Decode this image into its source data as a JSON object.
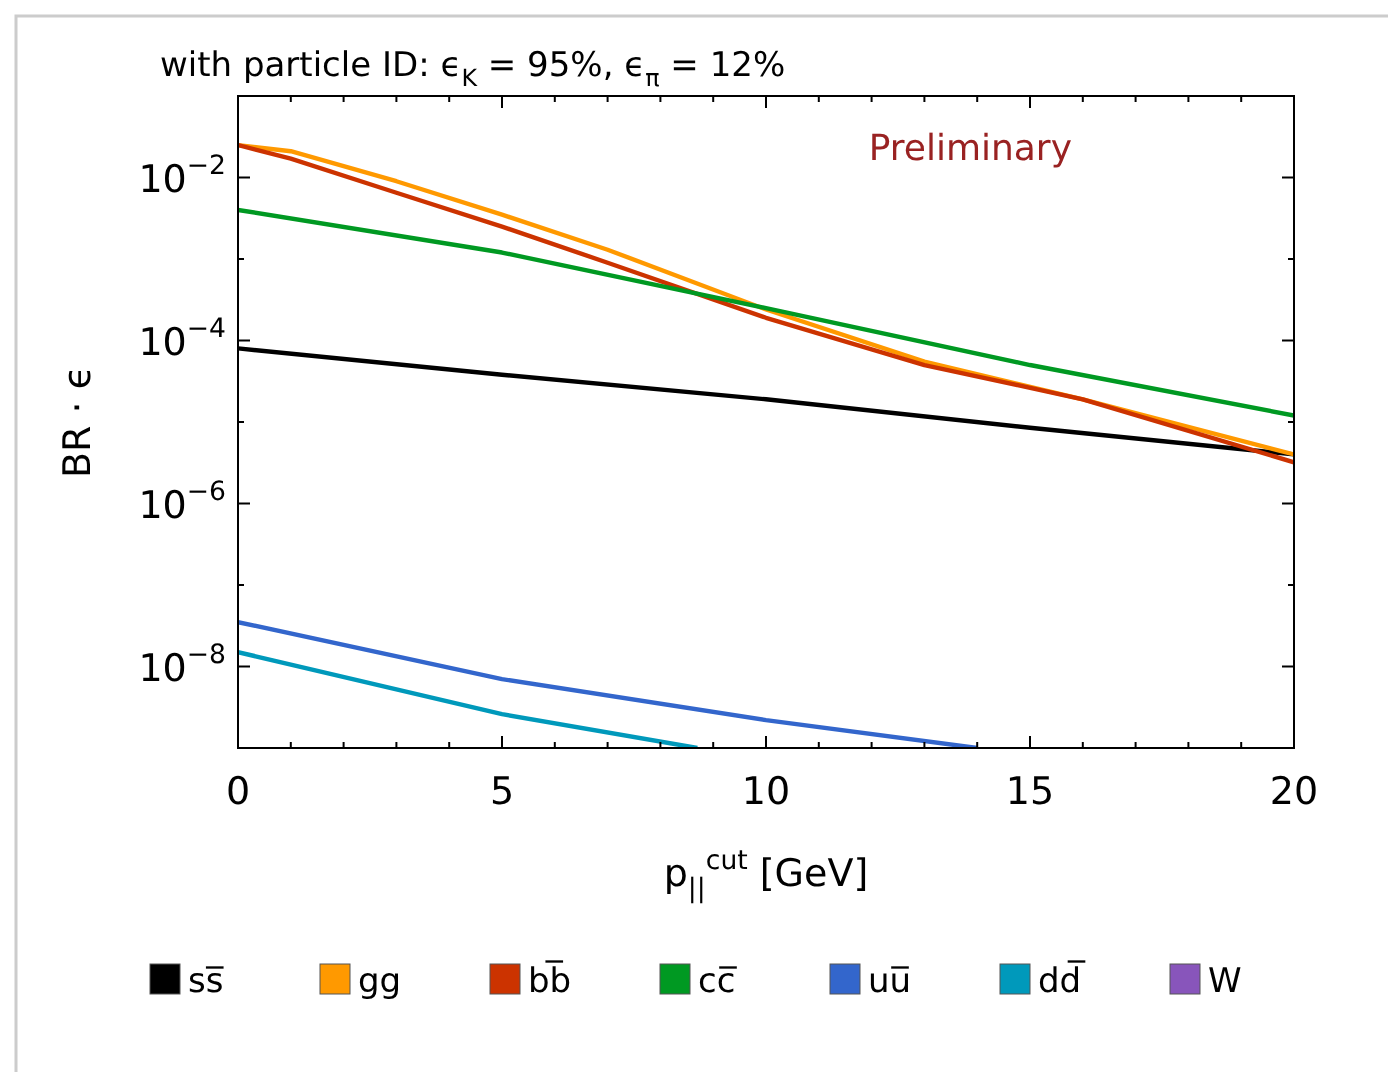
{
  "chart_data": {
    "type": "line",
    "title": "with particle ID: ϵ$_{K}$ = 95%, ϵ$_{π}$ = 12%",
    "xlabel": "p$_{||}$$^{cut}$ [GeV]",
    "ylabel": "BR · ϵ",
    "log": "y",
    "legend": "bottom",
    "grid": false,
    "annotations": [
      "Preliminary"
    ],
    "xlim": [
      0,
      20
    ],
    "xticks": [
      0,
      {
        "value": 1,
        "label": null
      },
      {
        "value": 2,
        "label": null
      },
      {
        "value": 3,
        "label": null
      },
      {
        "value": 4,
        "label": null
      },
      5,
      {
        "value": 6,
        "label": null
      },
      {
        "value": 7,
        "label": null
      },
      {
        "value": 8,
        "label": null
      },
      {
        "value": 9,
        "label": null
      },
      10,
      {
        "value": 11,
        "label": null
      },
      {
        "value": 12,
        "label": null
      },
      {
        "value": 13,
        "label": null
      },
      {
        "value": 14,
        "label": null
      },
      15,
      {
        "value": 16,
        "label": null
      },
      {
        "value": 17,
        "label": null
      },
      {
        "value": 18,
        "label": null
      },
      {
        "value": 19,
        "label": null
      },
      20
    ],
    "ylim": [
      1e-09,
      0.1
    ],
    "yticks": [
      {
        "value": 1e-08,
        "label": "10$^{−8}$"
      },
      {
        "value": 1e-07,
        "label": null
      },
      {
        "value": 1e-06,
        "label": "10$^{−6}$"
      },
      {
        "value": 1e-05,
        "label": null
      },
      {
        "value": 0.0001,
        "label": "10$^{−4}$"
      },
      {
        "value": 0.001,
        "label": null
      },
      {
        "value": 0.01,
        "label": "10$^{−2}$"
      }
    ],
    "series": [
      {
        "name": "ss̅",
        "color": "#000000",
        "x": [
          0,
          5,
          10,
          15,
          20
        ],
        "values": [
          8e-05,
          3.8e-05,
          1.9e-05,
          8.5e-06,
          4e-06
        ]
      },
      {
        "name": "gg",
        "color": "#ff9900",
        "x": [
          0,
          1,
          3,
          5,
          7,
          10,
          13,
          16,
          20
        ],
        "values": [
          0.025,
          0.021,
          0.009,
          0.0035,
          0.0013,
          0.00024,
          5.5e-05,
          1.9e-05,
          4e-06
        ]
      },
      {
        "name": "bb̅",
        "color": "#cc3300",
        "x": [
          0,
          1,
          3,
          5,
          7,
          10,
          13,
          16,
          20
        ],
        "values": [
          0.025,
          0.017,
          0.0065,
          0.0025,
          0.0009,
          0.00019,
          5e-05,
          1.9e-05,
          3.2e-06
        ]
      },
      {
        "name": "cc̅",
        "color": "#009922",
        "x": [
          0,
          5,
          10,
          15,
          20
        ],
        "values": [
          0.004,
          0.0012,
          0.00025,
          5e-05,
          1.2e-05
        ]
      },
      {
        "name": "uu̅",
        "color": "#3366cc",
        "x": [
          0,
          5,
          10,
          14
        ],
        "values": [
          3.5e-08,
          7e-09,
          2.2e-09,
          1e-09
        ]
      },
      {
        "name": "dd̅",
        "color": "#0099bb",
        "x": [
          0,
          5,
          8.7
        ],
        "values": [
          1.5e-08,
          2.6e-09,
          1e-09
        ]
      },
      {
        "name": "W",
        "color": "#8855bb"
      }
    ]
  }
}
